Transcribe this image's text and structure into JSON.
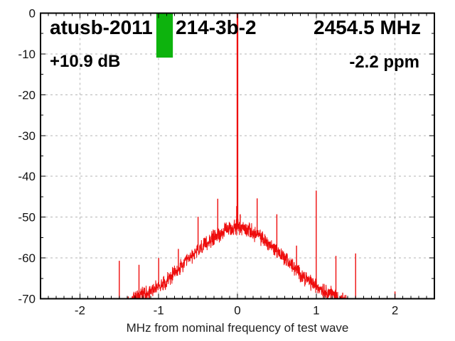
{
  "colors": {
    "trace": "#ee0c0c",
    "marker_green": "#0db30d",
    "grid": "#b5b5b5",
    "axis": "#000000",
    "background": "#ffffff",
    "text": "#000000"
  },
  "chart_data": {
    "type": "line",
    "annotations": {
      "title_left": "atusb-2011",
      "title_right": "214-3b-2",
      "frequency": "2454.5 MHz",
      "gain_margin": "+10.9 dB",
      "frequency_offset": "-2.2 ppm"
    },
    "xlabel": "MHz from nominal frequency of test wave",
    "ylabel": "",
    "x_axis": {
      "min": -2.5,
      "max": 2.5,
      "major_ticks": [
        -2,
        -1,
        0,
        1,
        2
      ],
      "minor_tick_step": 0.1
    },
    "y_axis": {
      "min": -70,
      "max": 0,
      "major_ticks": [
        0,
        -10,
        -20,
        -30,
        -40,
        -50,
        -60,
        -70
      ],
      "minor_tick_step": 5
    },
    "grid": true,
    "noise_floor_envelope": [
      [
        -1.42,
        -72.0
      ],
      [
        -1.35,
        -70.6
      ],
      [
        -1.3,
        -69.8
      ],
      [
        -1.2,
        -68.8
      ],
      [
        -1.1,
        -68.0
      ],
      [
        -1.0,
        -66.9
      ],
      [
        -0.9,
        -65.5
      ],
      [
        -0.8,
        -63.9
      ],
      [
        -0.75,
        -63.0
      ],
      [
        -0.7,
        -62.0
      ],
      [
        -0.6,
        -60.0
      ],
      [
        -0.5,
        -58.2
      ],
      [
        -0.45,
        -57.4
      ],
      [
        -0.4,
        -56.6
      ],
      [
        -0.35,
        -55.8
      ],
      [
        -0.3,
        -55.0
      ],
      [
        -0.25,
        -54.3
      ],
      [
        -0.2,
        -53.8
      ],
      [
        -0.15,
        -53.3
      ],
      [
        -0.1,
        -52.9
      ],
      [
        -0.05,
        -52.6
      ],
      [
        0.0,
        -52.3
      ],
      [
        0.05,
        -52.6
      ],
      [
        0.1,
        -52.9
      ],
      [
        0.15,
        -53.3
      ],
      [
        0.2,
        -53.8
      ],
      [
        0.25,
        -54.3
      ],
      [
        0.3,
        -55.0
      ],
      [
        0.35,
        -55.8
      ],
      [
        0.4,
        -56.6
      ],
      [
        0.45,
        -57.4
      ],
      [
        0.5,
        -58.2
      ],
      [
        0.6,
        -60.0
      ],
      [
        0.7,
        -62.0
      ],
      [
        0.75,
        -63.0
      ],
      [
        0.8,
        -63.9
      ],
      [
        0.9,
        -65.5
      ],
      [
        1.0,
        -66.9
      ],
      [
        1.1,
        -68.0
      ],
      [
        1.2,
        -68.8
      ],
      [
        1.3,
        -69.8
      ],
      [
        1.35,
        -70.6
      ],
      [
        1.42,
        -72.0
      ]
    ],
    "noise_amplitude_db": 1.7,
    "carrier": {
      "x": 0,
      "peak_db": 0
    },
    "spurs": [
      [
        -1.5,
        -60.7
      ],
      [
        -1.25,
        -61.7
      ],
      [
        -1.0,
        -60.0
      ],
      [
        -0.75,
        -57.8
      ],
      [
        -0.5,
        -49.9
      ],
      [
        -0.25,
        -45.5
      ],
      [
        -0.01,
        -47.3
      ],
      [
        0.035,
        -49.3
      ],
      [
        0.25,
        -45.4
      ],
      [
        0.5,
        -49.3
      ],
      [
        0.75,
        -57.0
      ],
      [
        1.0,
        -43.5
      ],
      [
        1.25,
        -59.5
      ],
      [
        1.5,
        -58.9
      ],
      [
        2.0,
        -68.2
      ]
    ],
    "pass_marker": {
      "x_from": -1.03,
      "x_to": -0.82,
      "db_top": 0,
      "db_bottom": -10.9
    }
  }
}
